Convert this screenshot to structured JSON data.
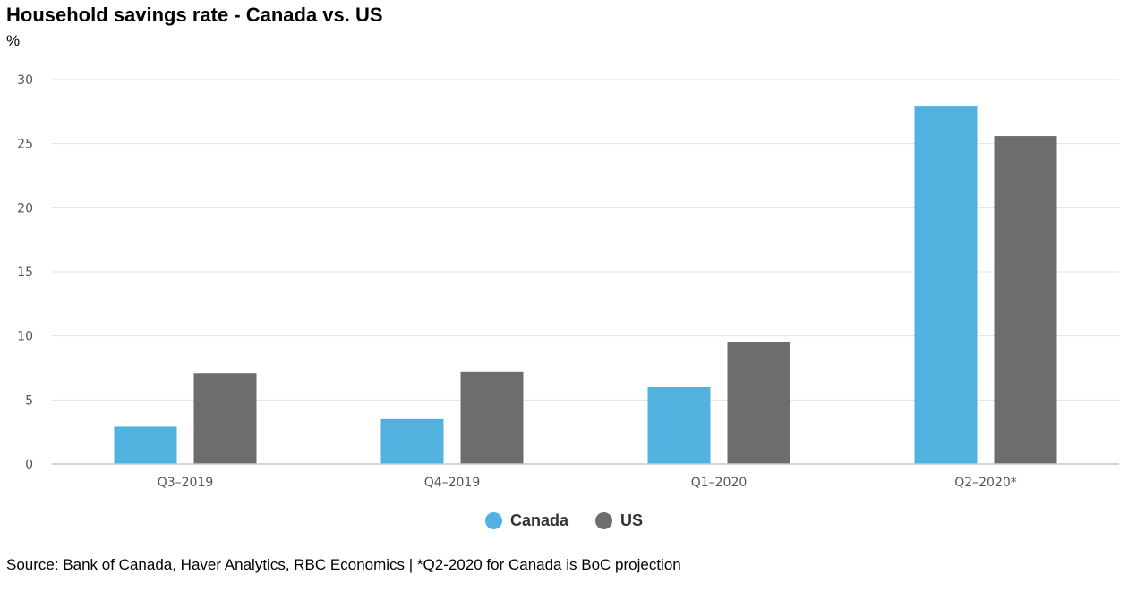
{
  "chart_data": {
    "type": "bar",
    "title": "Household savings rate - Canada vs. US",
    "ylabel": "%",
    "xlabel": "",
    "categories": [
      "Q3–2019",
      "Q4–2019",
      "Q1–2020",
      "Q2–2020*"
    ],
    "series": [
      {
        "name": "Canada",
        "color": "#52b2df",
        "values": [
          2.9,
          3.5,
          6.0,
          27.9
        ]
      },
      {
        "name": "US",
        "color": "#6d6d6d",
        "values": [
          7.1,
          7.2,
          9.5,
          25.6
        ]
      }
    ],
    "ylim": [
      0,
      30
    ],
    "yticks": [
      0,
      5,
      10,
      15,
      20,
      25,
      30
    ],
    "grid": true,
    "legend_position": "bottom-center",
    "source": "Source: Bank of Canada, Haver Analytics, RBC Economics | *Q2-2020 for Canada is BoC projection"
  }
}
